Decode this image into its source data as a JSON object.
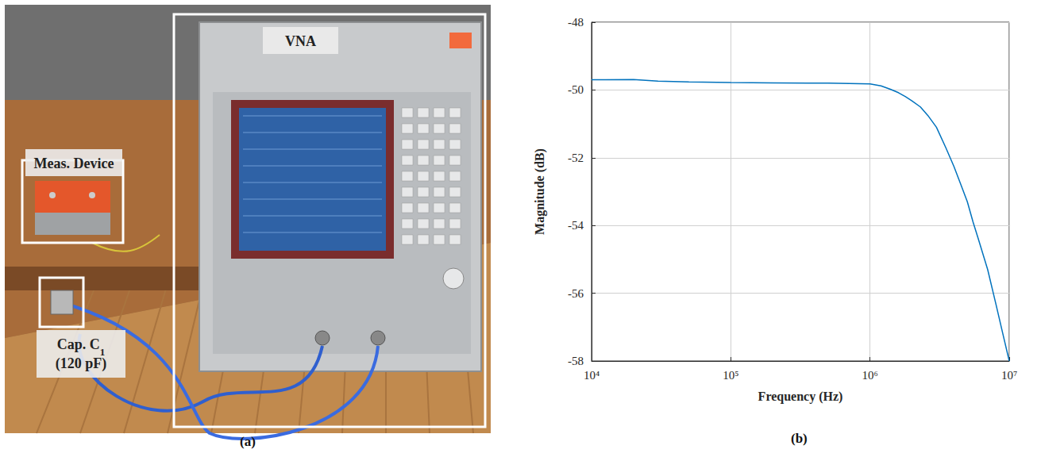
{
  "photo": {
    "panel_label": "(a)",
    "labels": {
      "vna": "VNA",
      "device": "Meas. Device",
      "capacitor": "Cap. C",
      "capacitor_subscript": "1",
      "capacitor_value": "(120 pF)"
    }
  },
  "chart_data": {
    "type": "line",
    "panel_label": "(b)",
    "x_label": "Frequency (Hz)",
    "y_label": "Magnitude (dB)",
    "log": "x",
    "grid": true,
    "color": "#0072bd",
    "x": [
      10000,
      20000,
      30000,
      50000,
      100000,
      200000,
      500000,
      1000000,
      1200000,
      1400000,
      1600000,
      1800000,
      2000000,
      2300000,
      2600000,
      3000000,
      3500000,
      4000000,
      4500000,
      5000000,
      5500000,
      6000000,
      7000000,
      8000000,
      9000000,
      10000000
    ],
    "values": [
      -49.7,
      -49.69,
      -49.74,
      -49.76,
      -49.78,
      -49.79,
      -49.8,
      -49.82,
      -49.88,
      -49.98,
      -50.08,
      -50.2,
      -50.32,
      -50.5,
      -50.75,
      -51.1,
      -51.7,
      -52.25,
      -52.8,
      -53.3,
      -53.9,
      -54.4,
      -55.3,
      -56.3,
      -57.2,
      -58.0
    ],
    "xlim": [
      10000,
      10000000
    ],
    "xticks": [
      {
        "value": 10000,
        "label": "10⁴"
      },
      {
        "value": 100000,
        "label": "10⁵"
      },
      {
        "value": 1000000,
        "label": "10⁶"
      },
      {
        "value": 10000000,
        "label": "10⁷"
      }
    ],
    "ylim": [
      -58,
      -48
    ],
    "yticks": [
      -58,
      -56,
      -54,
      -52,
      -50,
      -48
    ]
  }
}
